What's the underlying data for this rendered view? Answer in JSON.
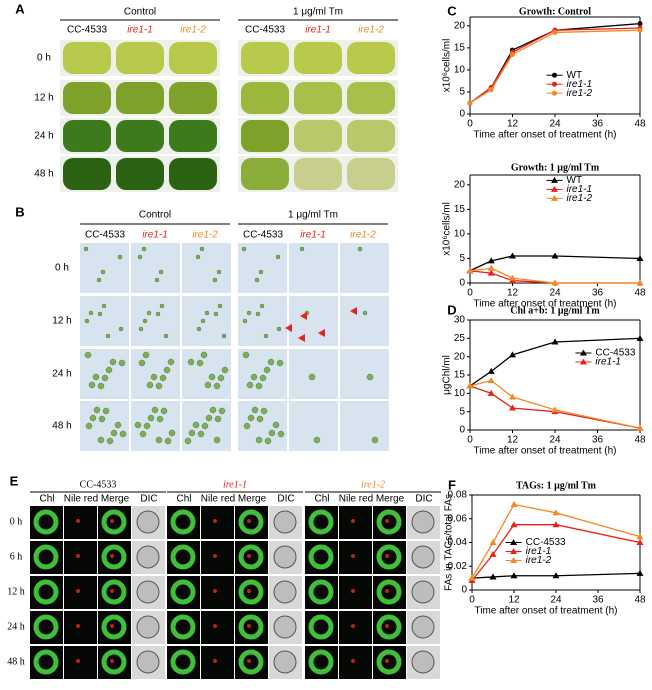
{
  "panel_a": {
    "label": "A",
    "conditions": [
      "Control",
      "1 μg/ml Tm"
    ],
    "strains": [
      "CC-4533",
      "ire1-1",
      "ire1-2"
    ],
    "times": [
      "0 h",
      "12 h",
      "24 h",
      "48 h"
    ]
  },
  "panel_b": {
    "label": "B",
    "conditions": [
      "Control",
      "1 μg/ml Tm"
    ],
    "strains": [
      "CC-4533",
      "ire1-1",
      "ire1-2"
    ],
    "times": [
      "0 h",
      "12 h",
      "24 h",
      "48 h"
    ]
  },
  "panel_e": {
    "label": "E",
    "strains": [
      "CC-4533",
      "ire1-1",
      "ire1-2"
    ],
    "channels": [
      "Chl",
      "Nile red",
      "Merge",
      "DIC"
    ],
    "times": [
      "0 h",
      "6 h",
      "12 h",
      "24 h",
      "48 h"
    ]
  },
  "chart_data": [
    {
      "type": "line",
      "label": "C",
      "title": "Growth: Control",
      "xlabel": "Time  after onset of treatment (h)",
      "ylabel": "x10⁶cells/ml",
      "x": [
        0,
        6,
        12,
        24,
        48
      ],
      "xlim": [
        0,
        48
      ],
      "xticks": [
        0,
        12,
        24,
        36,
        48
      ],
      "ylim": [
        0,
        22
      ],
      "yticks": [
        0,
        5,
        10,
        15,
        20
      ],
      "marker": "circle",
      "legend": "lower right",
      "series": [
        {
          "name": "WT",
          "color": "#000000",
          "values": [
            2.5,
            6,
            14.5,
            19,
            20.5
          ]
        },
        {
          "name": "ire1-1",
          "color": "#e8211c",
          "values": [
            2.5,
            6,
            14,
            19,
            19.5
          ]
        },
        {
          "name": "ire1-2",
          "color": "#f08a24",
          "values": [
            2.5,
            5.5,
            13.5,
            18.5,
            19
          ]
        }
      ]
    },
    {
      "type": "line",
      "title": "Growth: 1 μg/ml Tm",
      "xlabel": "Time  after onset of treatment (h)",
      "ylabel": "x10⁶cells/ml",
      "x": [
        0,
        6,
        12,
        24,
        48
      ],
      "xlim": [
        0,
        48
      ],
      "xticks": [
        0,
        12,
        24,
        36,
        48
      ],
      "ylim": [
        0,
        22
      ],
      "yticks": [
        0,
        5,
        10,
        15,
        20
      ],
      "marker": "triangle",
      "legend": "upper right",
      "series": [
        {
          "name": "WT",
          "color": "#000000",
          "values": [
            2.5,
            4.5,
            5.5,
            5.5,
            5
          ]
        },
        {
          "name": "ire1-1",
          "color": "#e8211c",
          "values": [
            2.5,
            2,
            0.5,
            0,
            0
          ]
        },
        {
          "name": "ire1-2",
          "color": "#f08a24",
          "values": [
            2.5,
            3,
            1,
            0,
            0
          ]
        }
      ]
    },
    {
      "type": "line",
      "label": "D",
      "title": "Chl a+b: 1 μg/ml Tm",
      "xlabel": "Time  after onset of treatment (h)",
      "ylabel": "μgChl/ml",
      "x": [
        0,
        6,
        12,
        24,
        48
      ],
      "xlim": [
        0,
        48
      ],
      "xticks": [
        0,
        12,
        24,
        36,
        48
      ],
      "ylim": [
        0,
        30
      ],
      "yticks": [
        0,
        5,
        10,
        15,
        20,
        25,
        30
      ],
      "marker": "triangle",
      "legend": "center right",
      "series": [
        {
          "name": "CC-4533",
          "color": "#000000",
          "values": [
            12,
            16,
            20.5,
            24,
            25
          ]
        },
        {
          "name": "ire1-1",
          "color": "#e8211c",
          "values": [
            12,
            10,
            6,
            5,
            0.5
          ]
        },
        {
          "color": "#f08a24",
          "values": [
            12,
            13.5,
            9,
            5.5,
            0.5
          ]
        }
      ]
    },
    {
      "type": "line",
      "label": "F",
      "title": "TAGs: 1 μg/ml Tm",
      "xlabel": "Time  after onset of treatment (h)",
      "ylabel": "FAs in TAGs/total FAs",
      "x": [
        0,
        6,
        12,
        24,
        48
      ],
      "xlim": [
        0,
        48
      ],
      "xticks": [
        0,
        12,
        24,
        36,
        48
      ],
      "ylim": [
        0,
        0.08
      ],
      "yticks": [
        0,
        0.02,
        0.04,
        0.06,
        0.08
      ],
      "marker": "triangle",
      "legend": "center",
      "series": [
        {
          "name": "CC-4533",
          "color": "#000000",
          "values": [
            0.01,
            0.011,
            0.012,
            0.012,
            0.014
          ]
        },
        {
          "name": "ire1-1",
          "color": "#e8211c",
          "values": [
            0.008,
            0.03,
            0.055,
            0.055,
            0.04
          ]
        },
        {
          "name": "ire1-2",
          "color": "#f08a24",
          "values": [
            0.01,
            0.04,
            0.072,
            0.065,
            0.045
          ]
        }
      ]
    }
  ]
}
